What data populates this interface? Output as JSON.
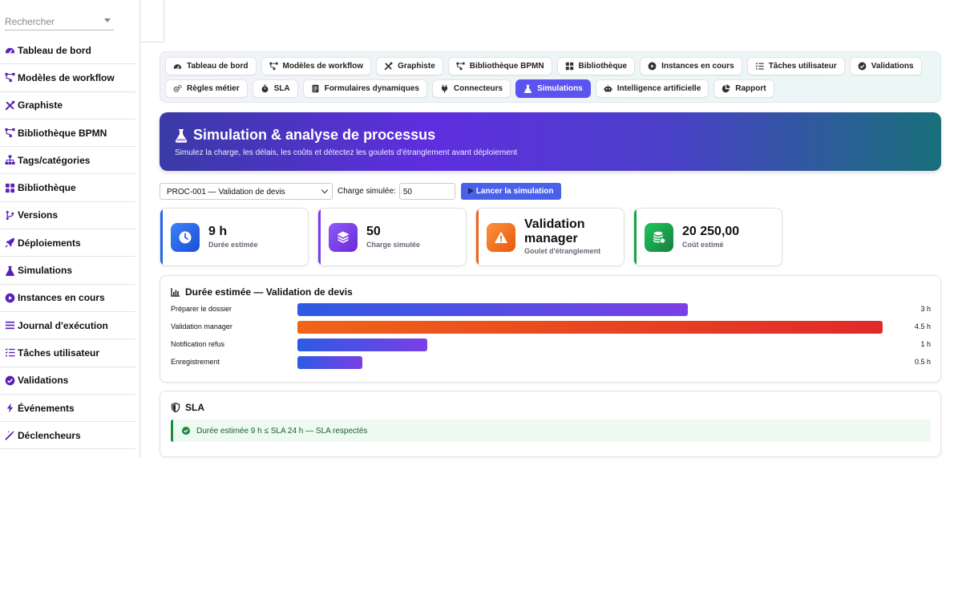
{
  "sidebar": {
    "search_placeholder": "Rechercher",
    "items": [
      {
        "label": "Tableau de bord",
        "icon": "gauge-icon"
      },
      {
        "label": "Modèles de workflow",
        "icon": "workflow-icon"
      },
      {
        "label": "Graphiste",
        "icon": "tools-icon"
      },
      {
        "label": "Bibliothèque BPMN",
        "icon": "workflow-icon"
      },
      {
        "label": "Tags/catégories",
        "icon": "sitemap-icon"
      },
      {
        "label": "Bibliothèque",
        "icon": "grid-icon"
      },
      {
        "label": "Versions",
        "icon": "branch-icon"
      },
      {
        "label": "Déploiements",
        "icon": "rocket-icon"
      },
      {
        "label": "Simulations",
        "icon": "flask-icon"
      },
      {
        "label": "Instances en cours",
        "icon": "play-circle-icon"
      },
      {
        "label": "Journal d'exécution",
        "icon": "list-icon"
      },
      {
        "label": "Tâches utilisateur",
        "icon": "tasks-icon"
      },
      {
        "label": "Validations",
        "icon": "check-circle-icon"
      },
      {
        "label": "Événements",
        "icon": "bolt-icon"
      },
      {
        "label": "Déclencheurs",
        "icon": "magic-icon"
      }
    ]
  },
  "tabs": {
    "row1": [
      {
        "label": "Tableau de bord",
        "icon": "gauge-icon"
      },
      {
        "label": "Modèles de workflow",
        "icon": "workflow-icon"
      },
      {
        "label": "Graphiste",
        "icon": "tools-icon"
      },
      {
        "label": "Bibliothèque BPMN",
        "icon": "workflow-icon"
      },
      {
        "label": "Bibliothèque",
        "icon": "grid-icon"
      },
      {
        "label": "Instances en cours",
        "icon": "play-circle-icon"
      },
      {
        "label": "Tâches utilisateur",
        "icon": "tasks-icon"
      },
      {
        "label": "Validations",
        "icon": "check-circle-icon"
      }
    ],
    "row2": [
      {
        "label": "Règles métier",
        "icon": "cogs-icon"
      },
      {
        "label": "SLA",
        "icon": "stopwatch-icon"
      },
      {
        "label": "Formulaires dynamiques",
        "icon": "form-icon"
      },
      {
        "label": "Connecteurs",
        "icon": "plug-icon"
      },
      {
        "label": "Simulations",
        "icon": "flask-icon",
        "active": true
      },
      {
        "label": "Intelligence artificielle",
        "icon": "robot-icon"
      },
      {
        "label": "Rapport",
        "icon": "pie-icon"
      }
    ]
  },
  "hero": {
    "title": "Simulation & analyse de processus",
    "subtitle": "Simulez la charge, les délais, les coûts et détectez les goulets d'étranglement avant déploiement"
  },
  "controls": {
    "process_selected": "PROC-001 — Validation de devis",
    "load_label": "Charge simulée:",
    "load_value": "50",
    "run_label": "Lancer la simulation"
  },
  "kpis": [
    {
      "value": "9 h",
      "label": "Durée estimée",
      "icon": "clock-icon",
      "color": "#2563eb"
    },
    {
      "value": "50",
      "label": "Charge simulée",
      "icon": "layers-icon",
      "color": "#7c3aed"
    },
    {
      "value": "Validation manager",
      "label": "Goulet d'étranglement",
      "icon": "warning-icon",
      "color": "#f0641e"
    },
    {
      "value": "20 250,00",
      "label": "Coût estimé",
      "icon": "coins-icon",
      "color": "#16a34a"
    }
  ],
  "duration_chart": {
    "title": "Durée estimée — Validation de devis",
    "icon": "chart-bar-icon"
  },
  "chart_data": {
    "type": "bar",
    "orientation": "horizontal",
    "title": "Durée estimée — Validation de devis",
    "categories": [
      "Préparer le dossier",
      "Validation manager",
      "Notification refus",
      "Enregistrement"
    ],
    "values": [
      3,
      4.5,
      1,
      0.5
    ],
    "value_labels": [
      "3 h",
      "4.5 h",
      "1 h",
      "0.5 h"
    ],
    "highlight": "Validation manager",
    "colors": {
      "normal_start": "#2d5be3",
      "normal_end": "#7b3fe4",
      "highlight_start": "#f06418",
      "highlight_end": "#e02a2a"
    }
  },
  "sla": {
    "title": "SLA",
    "message": "Durée estimée 9 h ≤ SLA 24 h — SLA respectés"
  }
}
